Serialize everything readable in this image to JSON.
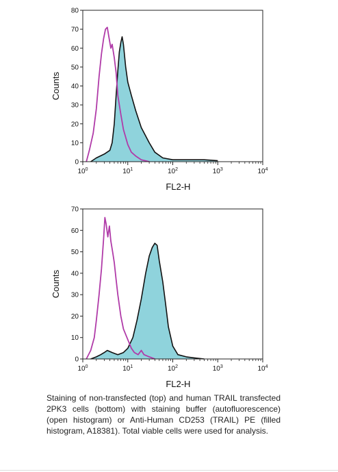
{
  "caption": "Staining of non-transfected (top) and human TRAIL transfected 2PK3 cells (bottom) with staining buffer (autofluorescence) (open histogram) or Anti-Human CD253 (TRAIL) PE (filled histogram, A18381). Total viable cells were used for analysis.",
  "colors": {
    "filled": "#8fd3dc",
    "filled_outline": "#111111",
    "open": "#b03aa8",
    "frame": "#222222"
  },
  "chart_data": [
    {
      "type": "area",
      "xscale": "log",
      "xlim": [
        1,
        10000
      ],
      "ylim": [
        0,
        80
      ],
      "xlabel": "FL2-H",
      "ylabel": "Counts",
      "xtick_labels": [
        {
          "x": 1,
          "base": "10",
          "exp": "0"
        },
        {
          "x": 10,
          "base": "10",
          "exp": "1"
        },
        {
          "x": 100,
          "base": "10",
          "exp": "2"
        },
        {
          "x": 1000,
          "base": "10",
          "exp": "3"
        },
        {
          "x": 10000,
          "base": "10",
          "exp": "4"
        }
      ],
      "yticks": [
        0,
        10,
        20,
        30,
        40,
        50,
        60,
        70,
        80
      ],
      "series": [
        {
          "style": "open",
          "points": [
            [
              1.2,
              0
            ],
            [
              1.4,
              6
            ],
            [
              1.7,
              15
            ],
            [
              2.0,
              28
            ],
            [
              2.3,
              45
            ],
            [
              2.6,
              57
            ],
            [
              2.9,
              65
            ],
            [
              3.2,
              70
            ],
            [
              3.5,
              71
            ],
            [
              3.8,
              66
            ],
            [
              4.2,
              60
            ],
            [
              4.5,
              62
            ],
            [
              5.0,
              55
            ],
            [
              5.5,
              47
            ],
            [
              6.0,
              35
            ],
            [
              7.0,
              25
            ],
            [
              8.0,
              17
            ],
            [
              10,
              9
            ],
            [
              12,
              5
            ],
            [
              15,
              3
            ],
            [
              20,
              1
            ],
            [
              30,
              0
            ]
          ]
        },
        {
          "style": "filled",
          "points": [
            [
              1.5,
              0
            ],
            [
              2.0,
              2
            ],
            [
              3.0,
              4
            ],
            [
              4.0,
              6
            ],
            [
              4.5,
              10
            ],
            [
              5.0,
              20
            ],
            [
              5.5,
              35
            ],
            [
              6.0,
              48
            ],
            [
              6.5,
              58
            ],
            [
              7.0,
              63
            ],
            [
              7.5,
              66
            ],
            [
              8.0,
              62
            ],
            [
              9.0,
              50
            ],
            [
              10,
              42
            ],
            [
              12,
              35
            ],
            [
              15,
              27
            ],
            [
              20,
              18
            ],
            [
              30,
              10
            ],
            [
              40,
              5
            ],
            [
              60,
              2
            ],
            [
              100,
              1
            ],
            [
              200,
              1
            ],
            [
              500,
              1
            ],
            [
              1000,
              0.5
            ]
          ]
        }
      ]
    },
    {
      "type": "area",
      "xscale": "log",
      "xlim": [
        1,
        10000
      ],
      "ylim": [
        0,
        70
      ],
      "xlabel": "FL2-H",
      "ylabel": "Counts",
      "xtick_labels": [
        {
          "x": 1,
          "base": "10",
          "exp": "0"
        },
        {
          "x": 10,
          "base": "10",
          "exp": "1"
        },
        {
          "x": 100,
          "base": "10",
          "exp": "2"
        },
        {
          "x": 1000,
          "base": "10",
          "exp": "3"
        },
        {
          "x": 10000,
          "base": "10",
          "exp": "4"
        }
      ],
      "yticks": [
        0,
        10,
        20,
        30,
        40,
        50,
        60,
        70
      ],
      "series": [
        {
          "style": "open",
          "points": [
            [
              1.2,
              0
            ],
            [
              1.5,
              4
            ],
            [
              1.8,
              10
            ],
            [
              2.0,
              18
            ],
            [
              2.3,
              30
            ],
            [
              2.6,
              42
            ],
            [
              2.9,
              56
            ],
            [
              3.1,
              66
            ],
            [
              3.3,
              63
            ],
            [
              3.6,
              57
            ],
            [
              3.9,
              62
            ],
            [
              4.2,
              55
            ],
            [
              4.6,
              50
            ],
            [
              5.0,
              45
            ],
            [
              5.5,
              37
            ],
            [
              6.0,
              30
            ],
            [
              7.0,
              20
            ],
            [
              8.0,
              14
            ],
            [
              10,
              9
            ],
            [
              12,
              5
            ],
            [
              14,
              3
            ],
            [
              17,
              2
            ],
            [
              20,
              4
            ],
            [
              23,
              2
            ],
            [
              30,
              1
            ],
            [
              40,
              0
            ]
          ]
        },
        {
          "style": "filled",
          "points": [
            [
              1.5,
              0
            ],
            [
              2.0,
              1
            ],
            [
              2.5,
              2
            ],
            [
              3.0,
              3
            ],
            [
              3.5,
              4
            ],
            [
              4.5,
              3
            ],
            [
              6.0,
              2
            ],
            [
              8.0,
              3
            ],
            [
              10,
              5
            ],
            [
              13,
              10
            ],
            [
              16,
              18
            ],
            [
              20,
              28
            ],
            [
              25,
              40
            ],
            [
              30,
              48
            ],
            [
              35,
              52
            ],
            [
              40,
              54
            ],
            [
              45,
              53
            ],
            [
              50,
              46
            ],
            [
              60,
              36
            ],
            [
              70,
              25
            ],
            [
              80,
              15
            ],
            [
              100,
              6
            ],
            [
              130,
              2
            ],
            [
              200,
              1
            ],
            [
              300,
              0.5
            ],
            [
              500,
              0
            ]
          ]
        }
      ]
    }
  ]
}
